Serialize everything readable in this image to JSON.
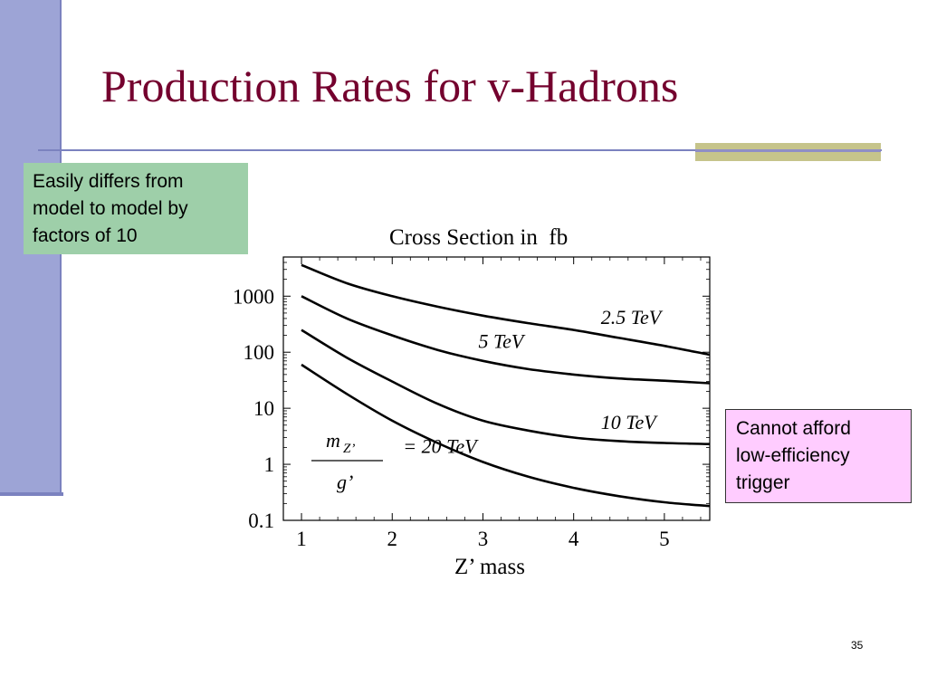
{
  "slide": {
    "title": "Production Rates for v-Hadrons",
    "number": "35"
  },
  "callouts": {
    "green": [
      "Easily differs from",
      "model to model by",
      "factors of 10"
    ],
    "pink": [
      "Cannot afford",
      "low-efficiency",
      "trigger"
    ]
  },
  "colors": {
    "title": "#74002e",
    "left_bar": "#9da4d6",
    "accent": "#c6c48b",
    "green_box": "#9ecfa9",
    "pink_box": "#ffccff"
  },
  "chart_data": {
    "type": "line",
    "title": "Cross Section in  fb",
    "xlabel": "Z’ mass",
    "ylabel": "",
    "xlim": [
      0.8,
      5.5
    ],
    "ylim": [
      0.1,
      5000
    ],
    "yscale": "log",
    "xticks": [
      "1",
      "2",
      "3",
      "4",
      "5"
    ],
    "yticks": [
      "0.1",
      "1",
      "10",
      "100",
      "1000"
    ],
    "legend_fraction": {
      "numerator": "m",
      "numerator_sub": "Z’",
      "denominator": "g’"
    },
    "series": [
      {
        "name": "2.5 TeV",
        "x": [
          1.0,
          1.5,
          2.0,
          2.5,
          3.0,
          3.5,
          4.0,
          4.5,
          5.0,
          5.5
        ],
        "y": [
          3600,
          1700,
          1000,
          650,
          450,
          330,
          250,
          180,
          130,
          90
        ]
      },
      {
        "name": "5 TeV",
        "x": [
          1.0,
          1.5,
          2.0,
          2.5,
          3.0,
          3.5,
          4.0,
          4.5,
          5.0,
          5.5
        ],
        "y": [
          1000,
          400,
          200,
          110,
          70,
          50,
          40,
          34,
          31,
          28
        ]
      },
      {
        "name": "10 TeV",
        "x": [
          1.0,
          1.5,
          2.0,
          2.5,
          3.0,
          3.5,
          4.0,
          4.5,
          5.0,
          5.5
        ],
        "y": [
          250,
          80,
          30,
          12,
          6,
          4,
          3,
          2.6,
          2.4,
          2.3
        ]
      },
      {
        "name": "= 20 TeV",
        "x": [
          1.0,
          1.5,
          2.0,
          2.5,
          3.0,
          3.5,
          4.0,
          4.5,
          5.0,
          5.5
        ],
        "y": [
          60,
          18,
          6,
          2.4,
          1.1,
          0.6,
          0.38,
          0.27,
          0.21,
          0.18
        ]
      }
    ]
  }
}
